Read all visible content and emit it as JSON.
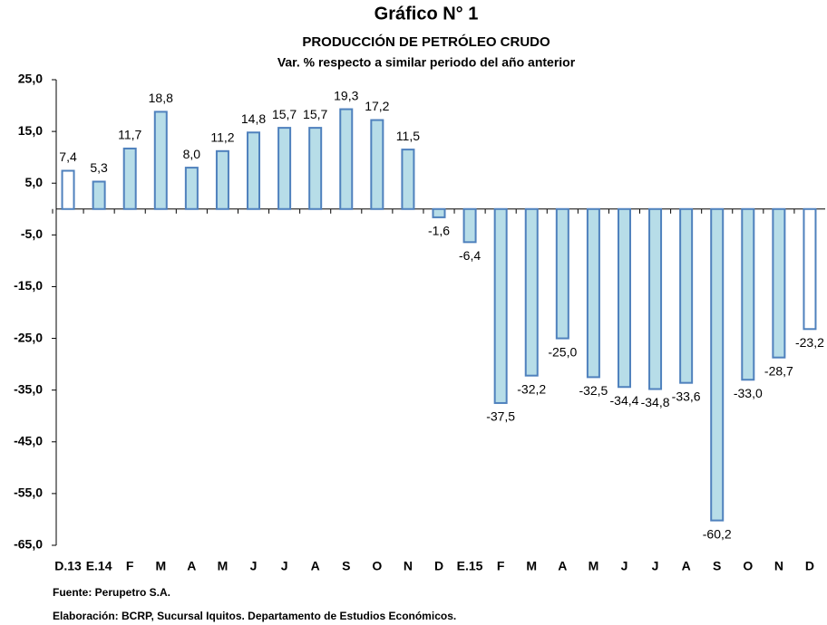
{
  "chart_data": {
    "type": "bar",
    "title": "Gráfico N° 1",
    "subtitle": "PRODUCCIÓN DE PETRÓLEO CRUDO",
    "subtitle_2": "Var. % respecto a similar periodo del año anterior",
    "categories": [
      "D.13",
      "E.14",
      "F",
      "M",
      "A",
      "M",
      "J",
      "J",
      "A",
      "S",
      "O",
      "N",
      "D",
      "E.15",
      "F",
      "M",
      "A",
      "M",
      "J",
      "J",
      "A",
      "S",
      "O",
      "N",
      "D"
    ],
    "values": [
      7.4,
      5.3,
      11.7,
      18.8,
      8.0,
      11.2,
      14.8,
      15.7,
      15.7,
      19.3,
      17.2,
      11.5,
      -1.6,
      -6.4,
      -37.5,
      -32.2,
      -25.0,
      -32.5,
      -34.4,
      -34.8,
      -33.6,
      -60.2,
      -33.0,
      -28.7,
      -23.2
    ],
    "value_labels": [
      "7,4",
      "5,3",
      "11,7",
      "18,8",
      "8,0",
      "11,2",
      "14,8",
      "15,7",
      "15,7",
      "19,3",
      "17,2",
      "11,5",
      "-1,6",
      "-6,4",
      "-37,5",
      "-32,2",
      "-25,0",
      "-32,5",
      "-34,4",
      "-34,8",
      "-33,6",
      "-60,2",
      "-33,0",
      "-28,7",
      "-23,2"
    ],
    "colors": [
      "#ffffff",
      "#b7dde8",
      "#b7dde8",
      "#b7dde8",
      "#b7dde8",
      "#b7dde8",
      "#b7dde8",
      "#b7dde8",
      "#b7dde8",
      "#b7dde8",
      "#b7dde8",
      "#b7dde8",
      "#b7dde8",
      "#b7dde8",
      "#b7dde8",
      "#b7dde8",
      "#b7dde8",
      "#b7dde8",
      "#b7dde8",
      "#b7dde8",
      "#b7dde8",
      "#b7dde8",
      "#b7dde8",
      "#b7dde8",
      "#ffffff"
    ],
    "edge_color": "#4f81bd",
    "ylim": [
      -65,
      25
    ],
    "yticks": [
      {
        "value": 25,
        "label": "25,0"
      },
      {
        "value": 15,
        "label": "15,0"
      },
      {
        "value": 5,
        "label": "5,0"
      },
      {
        "value": -5,
        "label": "-5,0"
      },
      {
        "value": -15,
        "label": "-15,0"
      },
      {
        "value": -25,
        "label": "-25,0"
      },
      {
        "value": -35,
        "label": "-35,0"
      },
      {
        "value": -45,
        "label": "-45,0"
      },
      {
        "value": -55,
        "label": "-55,0"
      },
      {
        "value": -65,
        "label": "-65,0"
      }
    ],
    "notes": [
      "Fuente: Perupetro S.A.",
      "Elaboración: BCRP, Sucursal Iquitos. Departamento de Estudios Económicos."
    ]
  }
}
